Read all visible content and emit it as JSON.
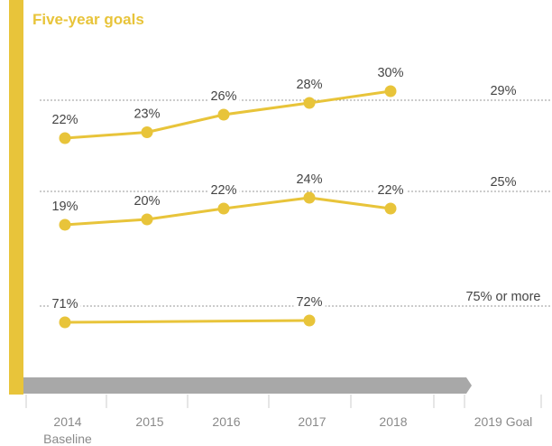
{
  "chart_data": {
    "type": "line",
    "title": "Five-year goals",
    "categories": [
      "2014",
      "2015",
      "2016",
      "2017",
      "2018"
    ],
    "baseline_label": "Baseline",
    "goal_label": "2019 Goal",
    "series": [
      {
        "values": [
          22,
          23,
          26,
          28,
          30
        ],
        "labels": [
          "22%",
          "23%",
          "26%",
          "28%",
          "30%"
        ],
        "goal": "29%"
      },
      {
        "values": [
          19,
          20,
          22,
          24,
          22
        ],
        "labels": [
          "19%",
          "20%",
          "22%",
          "24%",
          "22%"
        ],
        "goal": "25%"
      },
      {
        "values": [
          71,
          null,
          null,
          72,
          null
        ],
        "labels": [
          "71%",
          "",
          "",
          "72%",
          ""
        ],
        "goal": "75% or more"
      }
    ],
    "grid": false,
    "legend": "none"
  },
  "colors": {
    "accent": "#E8C43A",
    "timeline": "#A8A8A8",
    "dotted_line": "#9a9a9a",
    "tick_text": "#8a8a8a",
    "label_text": "#444444"
  }
}
